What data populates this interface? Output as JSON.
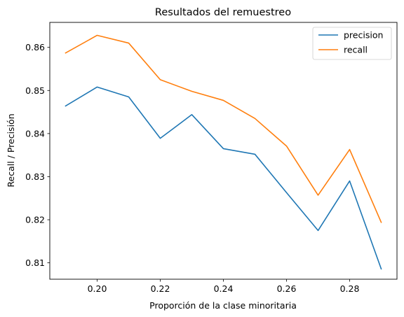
{
  "chart_data": {
    "type": "line",
    "title": "Resultados del remuestreo",
    "xlabel": "Proporción de la clase minoritaria",
    "ylabel": "Recall / Precisión",
    "x": [
      0.19,
      0.2,
      0.21,
      0.22,
      0.23,
      0.24,
      0.25,
      0.26,
      0.27,
      0.28,
      0.29
    ],
    "xlim": [
      0.185,
      0.295
    ],
    "ylim": [
      0.8062,
      0.8658
    ],
    "xticks": [
      0.2,
      0.22,
      0.24,
      0.26,
      0.28
    ],
    "xtick_labels": [
      "0.20",
      "0.22",
      "0.24",
      "0.26",
      "0.28"
    ],
    "yticks": [
      0.81,
      0.82,
      0.83,
      0.84,
      0.85,
      0.86
    ],
    "ytick_labels": [
      "0.81",
      "0.82",
      "0.83",
      "0.84",
      "0.85",
      "0.86"
    ],
    "grid": false,
    "legend_position": "top-right",
    "series": [
      {
        "name": "precision",
        "color": "#1f77b4",
        "values": [
          0.8464,
          0.8508,
          0.8485,
          0.8389,
          0.8444,
          0.8365,
          0.8352,
          0.8263,
          0.8175,
          0.829,
          0.8086
        ]
      },
      {
        "name": "recall",
        "color": "#ff7f0e",
        "values": [
          0.8587,
          0.8628,
          0.861,
          0.8525,
          0.8498,
          0.8477,
          0.8435,
          0.8371,
          0.8257,
          0.8363,
          0.8194
        ]
      }
    ]
  }
}
